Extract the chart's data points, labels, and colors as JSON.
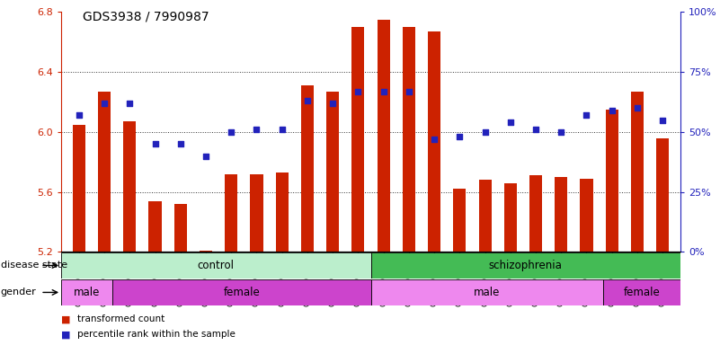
{
  "title": "GDS3938 / 7990987",
  "samples": [
    "GSM630785",
    "GSM630786",
    "GSM630787",
    "GSM630788",
    "GSM630789",
    "GSM630790",
    "GSM630791",
    "GSM630792",
    "GSM630793",
    "GSM630794",
    "GSM630795",
    "GSM630796",
    "GSM630797",
    "GSM630798",
    "GSM630799",
    "GSM630803",
    "GSM630804",
    "GSM630805",
    "GSM630806",
    "GSM630807",
    "GSM630808",
    "GSM630800",
    "GSM630801",
    "GSM630802"
  ],
  "bar_values": [
    6.05,
    6.27,
    6.07,
    5.54,
    5.52,
    5.21,
    5.72,
    5.72,
    5.73,
    6.31,
    6.27,
    6.7,
    6.75,
    6.7,
    6.67,
    5.62,
    5.68,
    5.66,
    5.71,
    5.7,
    5.69,
    6.15,
    6.27,
    5.96
  ],
  "percentile_values": [
    57,
    62,
    62,
    45,
    45,
    40,
    50,
    51,
    51,
    63,
    62,
    67,
    67,
    67,
    47,
    48,
    50,
    54,
    51,
    50,
    57,
    59,
    60,
    55
  ],
  "ylim_left": [
    5.2,
    6.8
  ],
  "ylim_right": [
    0,
    100
  ],
  "yticks_left": [
    5.2,
    5.6,
    6.0,
    6.4,
    6.8
  ],
  "yticks_right": [
    0,
    25,
    50,
    75,
    100
  ],
  "bar_color": "#CC2200",
  "marker_color": "#2222BB",
  "disease_state_groups": [
    {
      "label": "control",
      "start": 0,
      "end": 12,
      "color": "#BBEECC"
    },
    {
      "label": "schizophrenia",
      "start": 12,
      "end": 24,
      "color": "#44BB55"
    }
  ],
  "gender_groups": [
    {
      "label": "male",
      "start": 0,
      "end": 2,
      "color": "#EE88EE"
    },
    {
      "label": "female",
      "start": 2,
      "end": 12,
      "color": "#CC44CC"
    },
    {
      "label": "male",
      "start": 12,
      "end": 21,
      "color": "#EE88EE"
    },
    {
      "label": "female",
      "start": 21,
      "end": 24,
      "color": "#CC44CC"
    }
  ],
  "legend_bar_label": "transformed count",
  "legend_pct_label": "percentile rank within the sample",
  "bar_width": 0.5,
  "base_value": 5.2,
  "grid_yticks": [
    5.6,
    6.0,
    6.4
  ],
  "grid_color": "black",
  "title_fontsize": 10,
  "tick_fontsize": 6.5,
  "label_fontsize": 8,
  "annotation_fontsize": 8.5
}
